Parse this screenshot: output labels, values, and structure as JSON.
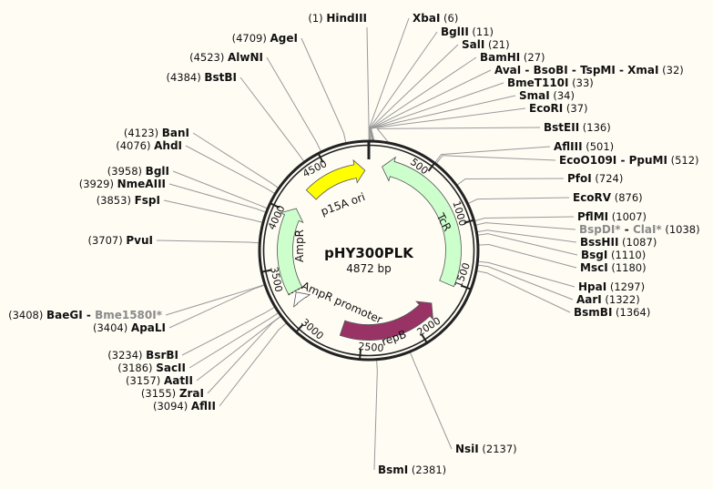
{
  "plasmid": {
    "name": "pHY300PLK",
    "length_label": "4872 bp",
    "length": 4872
  },
  "colors": {
    "background": "#fffcf4",
    "p15A_ori": "#ffff00",
    "TcR": "#ccffcc",
    "AmpR": "#ccffcc",
    "AmpR_promoter": "#ffffff",
    "repB": "#993366"
  },
  "ticks": [
    "500",
    "1000",
    "1500",
    "2000",
    "2500",
    "3000",
    "3500",
    "4000",
    "4500"
  ],
  "features": [
    {
      "name": "p15A ori",
      "start": 4250,
      "end": 4835,
      "direction": "forward",
      "color": "#ffff00"
    },
    {
      "name": "TcR",
      "start": 122,
      "end": 1530,
      "direction": "reverse",
      "color": "#ccffcc"
    },
    {
      "name": "AmpR",
      "start": 3265,
      "end": 4060,
      "direction": "forward",
      "color": "#ccffcc"
    },
    {
      "name": "AmpR promoter",
      "start": 3160,
      "end": 3250,
      "direction": "forward",
      "color": "#ffffff"
    },
    {
      "name": "repB",
      "start": 1760,
      "end": 2690,
      "direction": "reverse",
      "color": "#993366"
    }
  ],
  "sites": [
    {
      "names": [
        {
          "t": "HindIII"
        }
      ],
      "pos": 1
    },
    {
      "names": [
        {
          "t": "XbaI"
        }
      ],
      "pos": 6
    },
    {
      "names": [
        {
          "t": "BglII"
        }
      ],
      "pos": 11
    },
    {
      "names": [
        {
          "t": "SalI"
        }
      ],
      "pos": 21
    },
    {
      "names": [
        {
          "t": "BamHI"
        }
      ],
      "pos": 27
    },
    {
      "names": [
        {
          "t": "AvaI"
        },
        {
          "t": "BsoBI"
        },
        {
          "t": "TspMI"
        },
        {
          "t": "XmaI"
        }
      ],
      "pos": 32
    },
    {
      "names": [
        {
          "t": "BmeT110I"
        }
      ],
      "pos": 33
    },
    {
      "names": [
        {
          "t": "SmaI"
        }
      ],
      "pos": 34
    },
    {
      "names": [
        {
          "t": "EcoRI"
        }
      ],
      "pos": 37
    },
    {
      "names": [
        {
          "t": "BstEII"
        }
      ],
      "pos": 136
    },
    {
      "names": [
        {
          "t": "AflIII"
        }
      ],
      "pos": 501
    },
    {
      "names": [
        {
          "t": "EcoO109I"
        },
        {
          "t": "PpuMI"
        }
      ],
      "pos": 512
    },
    {
      "names": [
        {
          "t": "PfoI"
        }
      ],
      "pos": 724
    },
    {
      "names": [
        {
          "t": "EcoRV"
        }
      ],
      "pos": 876
    },
    {
      "names": [
        {
          "t": "PflMI"
        }
      ],
      "pos": 1007
    },
    {
      "names": [
        {
          "t": "BspDI*",
          "grey": true
        },
        {
          "t": "ClaI*",
          "grey": true
        }
      ],
      "pos": 1038
    },
    {
      "names": [
        {
          "t": "BssHII"
        }
      ],
      "pos": 1087
    },
    {
      "names": [
        {
          "t": "BsgI"
        }
      ],
      "pos": 1110
    },
    {
      "names": [
        {
          "t": "MscI"
        }
      ],
      "pos": 1180
    },
    {
      "names": [
        {
          "t": "HpaI"
        }
      ],
      "pos": 1297
    },
    {
      "names": [
        {
          "t": "AarI"
        }
      ],
      "pos": 1322
    },
    {
      "names": [
        {
          "t": "BsmBI"
        }
      ],
      "pos": 1364
    },
    {
      "names": [
        {
          "t": "NsiI"
        }
      ],
      "pos": 2137
    },
    {
      "names": [
        {
          "t": "BsmI"
        }
      ],
      "pos": 2381
    },
    {
      "names": [
        {
          "t": "AflII"
        }
      ],
      "pos": 3094
    },
    {
      "names": [
        {
          "t": "ZraI"
        }
      ],
      "pos": 3155
    },
    {
      "names": [
        {
          "t": "AatII"
        }
      ],
      "pos": 3157
    },
    {
      "names": [
        {
          "t": "SacII"
        }
      ],
      "pos": 3186
    },
    {
      "names": [
        {
          "t": "BsrBI"
        }
      ],
      "pos": 3234
    },
    {
      "names": [
        {
          "t": "ApaLI"
        }
      ],
      "pos": 3404
    },
    {
      "names": [
        {
          "t": "BaeGI"
        },
        {
          "t": "Bme1580I*",
          "grey": true
        }
      ],
      "pos": 3408
    },
    {
      "names": [
        {
          "t": "PvuI"
        }
      ],
      "pos": 3707
    },
    {
      "names": [
        {
          "t": "FspI"
        }
      ],
      "pos": 3853
    },
    {
      "names": [
        {
          "t": "NmeAIII"
        }
      ],
      "pos": 3929
    },
    {
      "names": [
        {
          "t": "BglI"
        }
      ],
      "pos": 3958
    },
    {
      "names": [
        {
          "t": "AhdI"
        }
      ],
      "pos": 4076
    },
    {
      "names": [
        {
          "t": "BanI"
        }
      ],
      "pos": 4123
    },
    {
      "names": [
        {
          "t": "BstBI"
        }
      ],
      "pos": 4384
    },
    {
      "names": [
        {
          "t": "AlwNI"
        }
      ],
      "pos": 4523
    },
    {
      "names": [
        {
          "t": "AgeI"
        }
      ],
      "pos": 4709
    }
  ]
}
